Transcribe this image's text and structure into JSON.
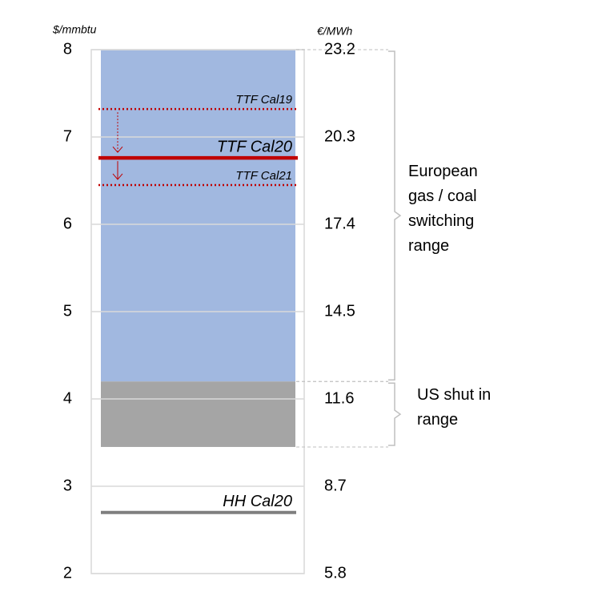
{
  "chart_data": {
    "type": "range",
    "y_label": "$/mmbtu",
    "y2_label": "€/MWh",
    "ylim": [
      2,
      8
    ],
    "yticks": [
      2,
      3,
      4,
      5,
      6,
      7,
      8
    ],
    "y2lim": [
      5.8,
      23.2
    ],
    "y2ticks": [
      5.8,
      8.7,
      11.6,
      14.5,
      17.4,
      20.3,
      23.2
    ],
    "grid": true,
    "ranges": [
      {
        "label": [
          "European",
          "gas / coal",
          "switching",
          "range"
        ],
        "lower": 4.2,
        "upper": 8,
        "color": "#a1b8e0"
      },
      {
        "label": [
          "US shut in",
          "range"
        ],
        "lower": 3.45,
        "upper": 4.2,
        "color": "#a5a5a5"
      }
    ],
    "levels": [
      {
        "name": "TTF Cal19",
        "value": 7.32,
        "color": "#c00000",
        "style": "dotted"
      },
      {
        "name": "TTF Cal20",
        "value": 6.76,
        "color": "#c00000",
        "style": "solid"
      },
      {
        "name": "TTF Cal21",
        "value": 6.45,
        "color": "#c00000",
        "style": "dotted"
      },
      {
        "name": "HH Cal20",
        "value": 2.7,
        "color": "#7f7f7f",
        "style": "solid"
      }
    ]
  }
}
